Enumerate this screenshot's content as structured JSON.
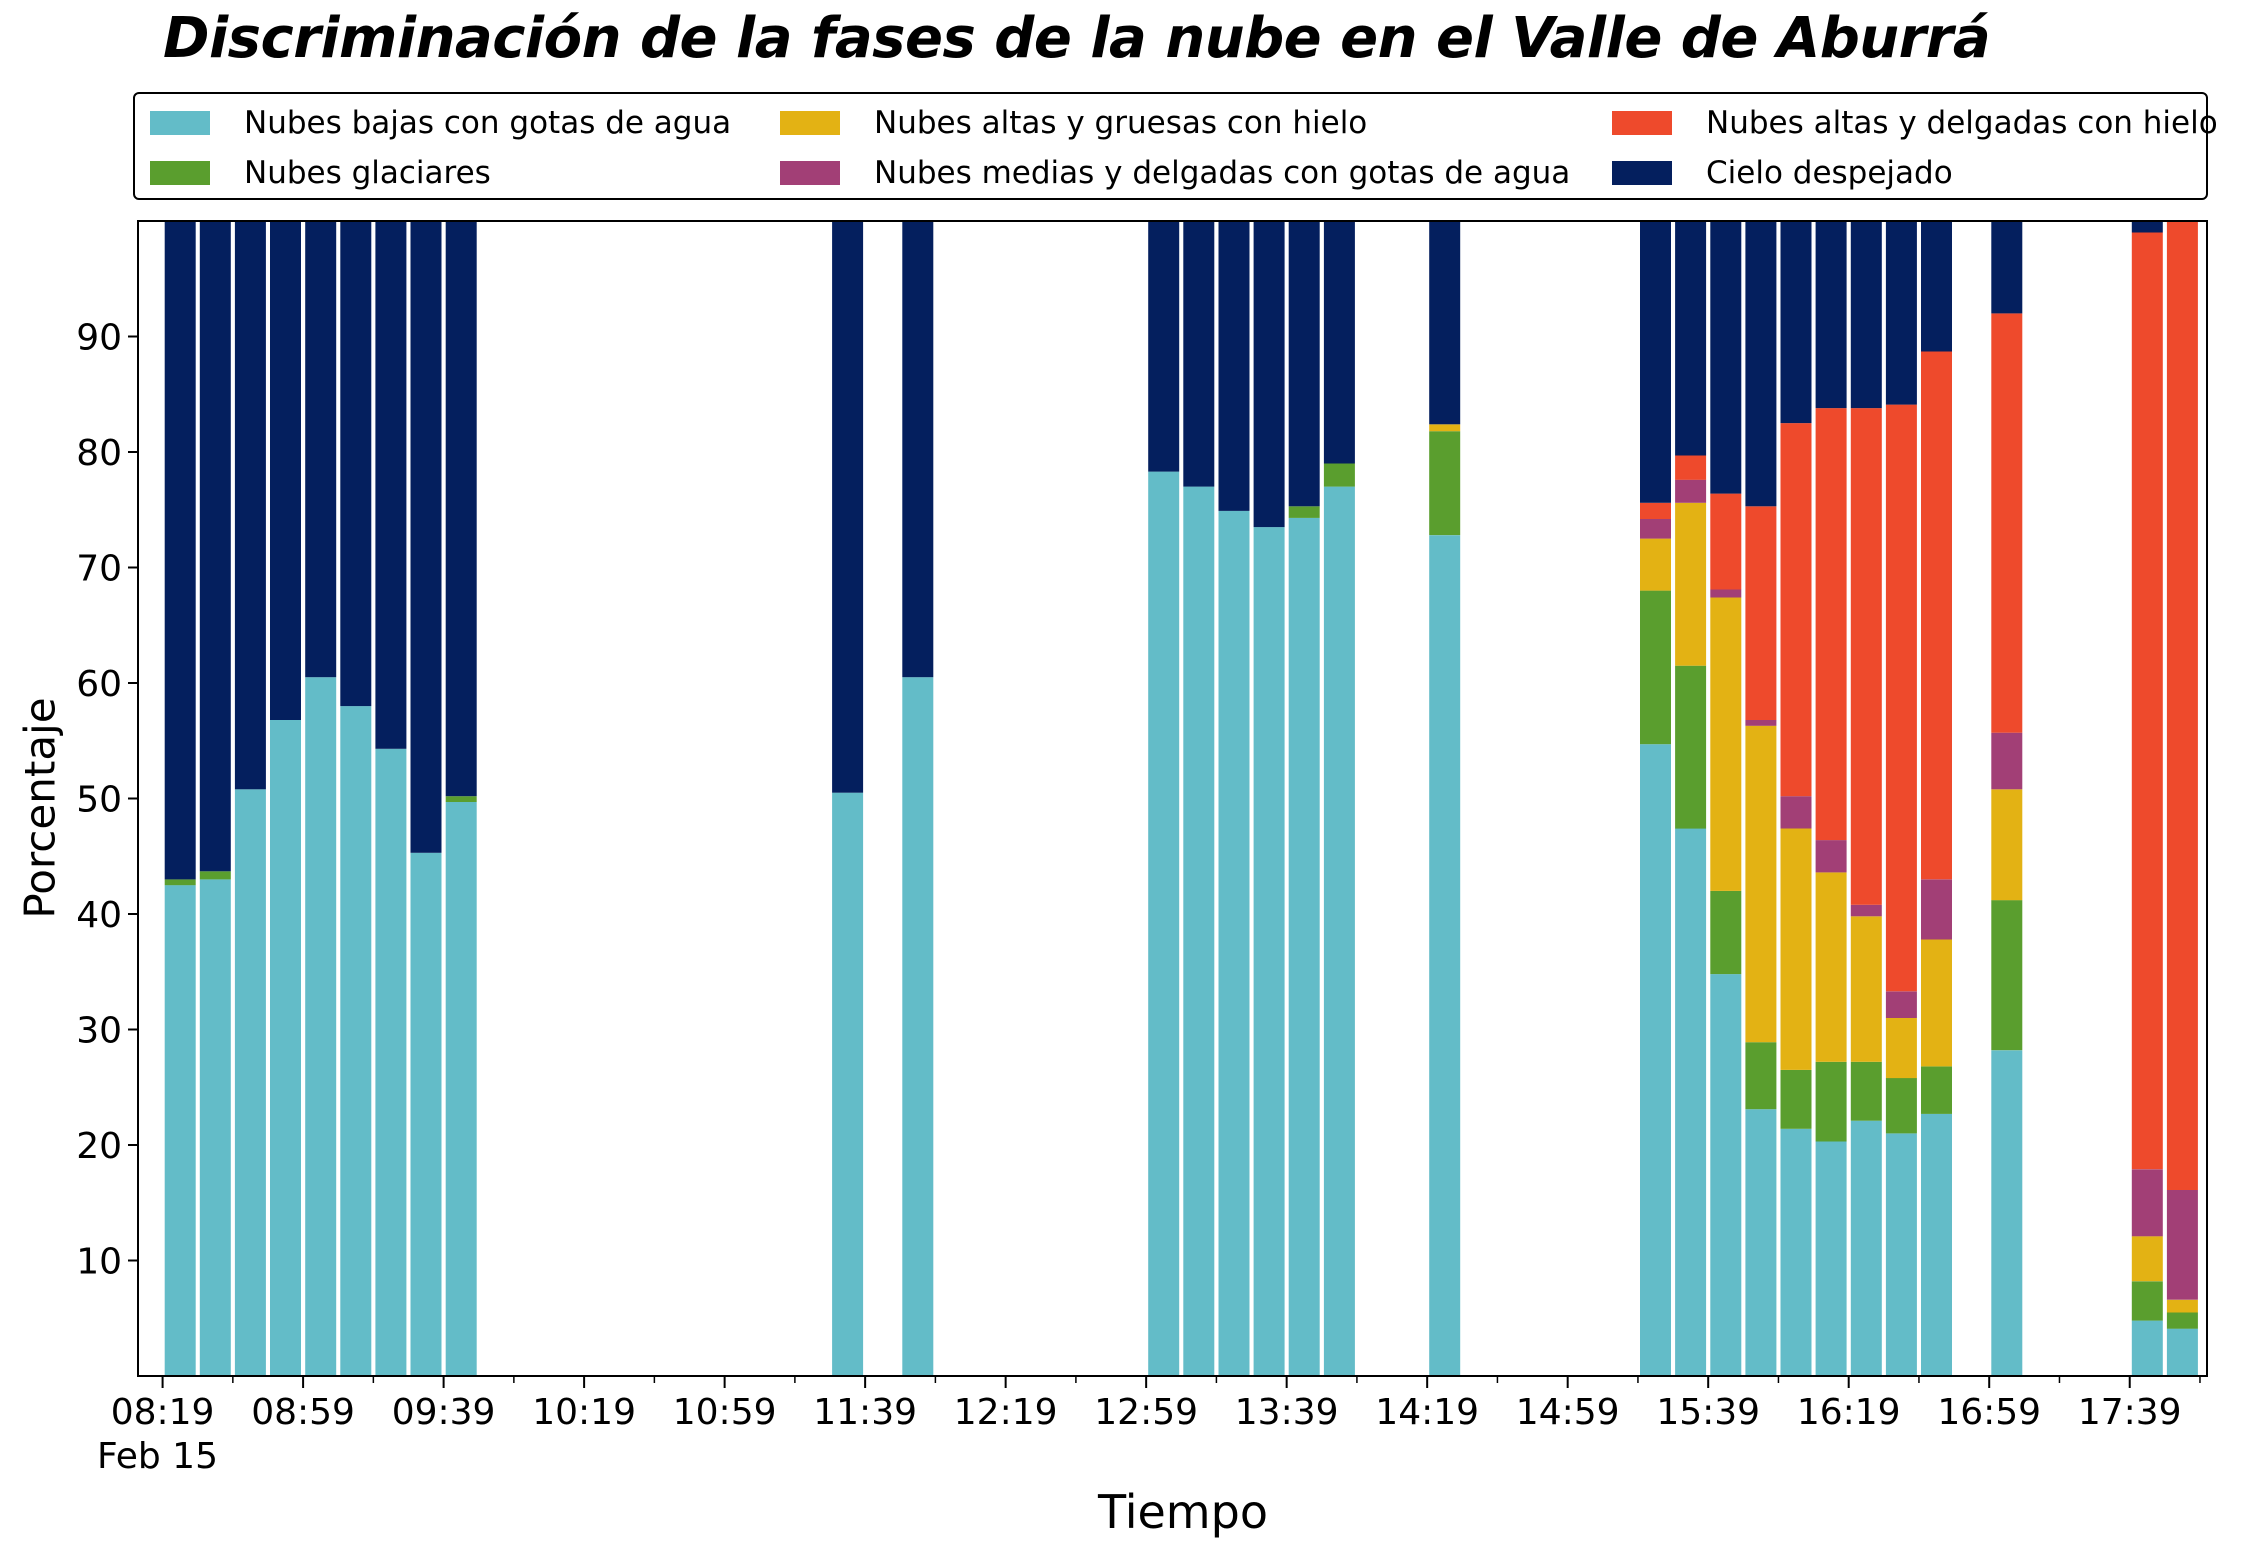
{
  "chart_data": {
    "type": "bar",
    "stacked": true,
    "title": "Discriminación de la fases de la nube en el Valle de Aburrá",
    "xlabel": "Tiempo",
    "ylabel": "Porcentaje",
    "date_label": "Feb 15",
    "ylim": [
      0,
      100
    ],
    "yticks": [
      10,
      20,
      30,
      40,
      50,
      60,
      70,
      80,
      90
    ],
    "x_tick_labels": [
      "08:19",
      "08:59",
      "09:39",
      "10:19",
      "10:59",
      "11:39",
      "12:19",
      "12:59",
      "13:39",
      "14:19",
      "14:59",
      "15:39",
      "16:19",
      "16:59",
      "17:39"
    ],
    "legend_position": "top",
    "grid": false,
    "series": [
      {
        "name": "Nubes bajas con gotas de agua",
        "color": "#63BCC8"
      },
      {
        "name": "Nubes glaciares",
        "color": "#5A9E2E"
      },
      {
        "name": "Nubes altas y gruesas con hielo",
        "color": "#E3B214"
      },
      {
        "name": "Nubes medias y delgadas con gotas de agua",
        "color": "#A23F76"
      },
      {
        "name": "Nubes altas y delgadas con hielo",
        "color": "#EE4A2C"
      },
      {
        "name": "Cielo despejado",
        "color": "#041F5E"
      }
    ],
    "bars": [
      {
        "time": "08:24",
        "values": [
          42.5,
          0.5,
          0,
          0,
          0,
          57.0
        ]
      },
      {
        "time": "08:34",
        "values": [
          43.0,
          0.7,
          0,
          0,
          0,
          56.3
        ]
      },
      {
        "time": "08:44",
        "values": [
          50.8,
          0,
          0,
          0,
          0,
          49.2
        ]
      },
      {
        "time": "08:54",
        "values": [
          56.8,
          0,
          0,
          0,
          0,
          43.2
        ]
      },
      {
        "time": "09:04",
        "values": [
          60.5,
          0,
          0,
          0,
          0,
          39.5
        ]
      },
      {
        "time": "09:14",
        "values": [
          58.0,
          0,
          0,
          0,
          0,
          42.0
        ]
      },
      {
        "time": "09:24",
        "values": [
          54.3,
          0,
          0,
          0,
          0,
          45.7
        ]
      },
      {
        "time": "09:34",
        "values": [
          45.3,
          0,
          0,
          0,
          0,
          54.7
        ]
      },
      {
        "time": "09:44",
        "values": [
          49.7,
          0.5,
          0,
          0,
          0,
          49.8
        ]
      },
      {
        "time": "11:34",
        "values": [
          50.5,
          0,
          0,
          0,
          0,
          49.5
        ]
      },
      {
        "time": "11:54",
        "values": [
          60.5,
          0,
          0,
          0,
          0,
          39.5
        ]
      },
      {
        "time": "13:04",
        "values": [
          78.3,
          0,
          0,
          0,
          0,
          21.7
        ]
      },
      {
        "time": "13:14",
        "values": [
          77.0,
          0,
          0,
          0,
          0,
          23.0
        ]
      },
      {
        "time": "13:24",
        "values": [
          74.9,
          0,
          0,
          0,
          0,
          25.1
        ]
      },
      {
        "time": "13:34",
        "values": [
          73.5,
          0,
          0,
          0,
          0,
          26.5
        ]
      },
      {
        "time": "13:44",
        "values": [
          74.3,
          1.0,
          0,
          0,
          0,
          24.7
        ]
      },
      {
        "time": "13:54",
        "values": [
          77.0,
          2.0,
          0,
          0,
          0,
          21.0
        ]
      },
      {
        "time": "14:24",
        "values": [
          72.8,
          9.0,
          0.6,
          0,
          0,
          17.6
        ]
      },
      {
        "time": "15:24",
        "values": [
          54.7,
          13.3,
          4.5,
          1.7,
          1.4,
          24.4
        ]
      },
      {
        "time": "15:34",
        "values": [
          47.4,
          14.1,
          14.1,
          2.0,
          2.1,
          20.3
        ]
      },
      {
        "time": "15:44",
        "values": [
          34.8,
          7.2,
          25.4,
          0.7,
          8.3,
          23.6
        ]
      },
      {
        "time": "15:54",
        "values": [
          23.1,
          5.8,
          27.4,
          0.5,
          18.5,
          24.7
        ]
      },
      {
        "time": "16:04",
        "values": [
          21.4,
          5.1,
          20.9,
          2.8,
          32.3,
          17.5
        ]
      },
      {
        "time": "16:14",
        "values": [
          20.3,
          6.9,
          16.4,
          2.8,
          37.4,
          16.2
        ]
      },
      {
        "time": "16:24",
        "values": [
          22.1,
          5.1,
          12.6,
          1.0,
          43.0,
          16.2
        ]
      },
      {
        "time": "16:34",
        "values": [
          21.0,
          4.8,
          5.2,
          2.3,
          50.8,
          15.9
        ]
      },
      {
        "time": "16:44",
        "values": [
          22.7,
          4.1,
          11.0,
          5.2,
          45.7,
          11.3
        ]
      },
      {
        "time": "17:04",
        "values": [
          28.2,
          13.0,
          9.6,
          4.9,
          36.3,
          8.0
        ]
      },
      {
        "time": "17:44",
        "values": [
          4.8,
          3.4,
          3.9,
          5.8,
          81.1,
          1.0
        ]
      },
      {
        "time": "17:54",
        "values": [
          4.1,
          1.4,
          1.1,
          9.5,
          83.9,
          0
        ]
      }
    ]
  }
}
